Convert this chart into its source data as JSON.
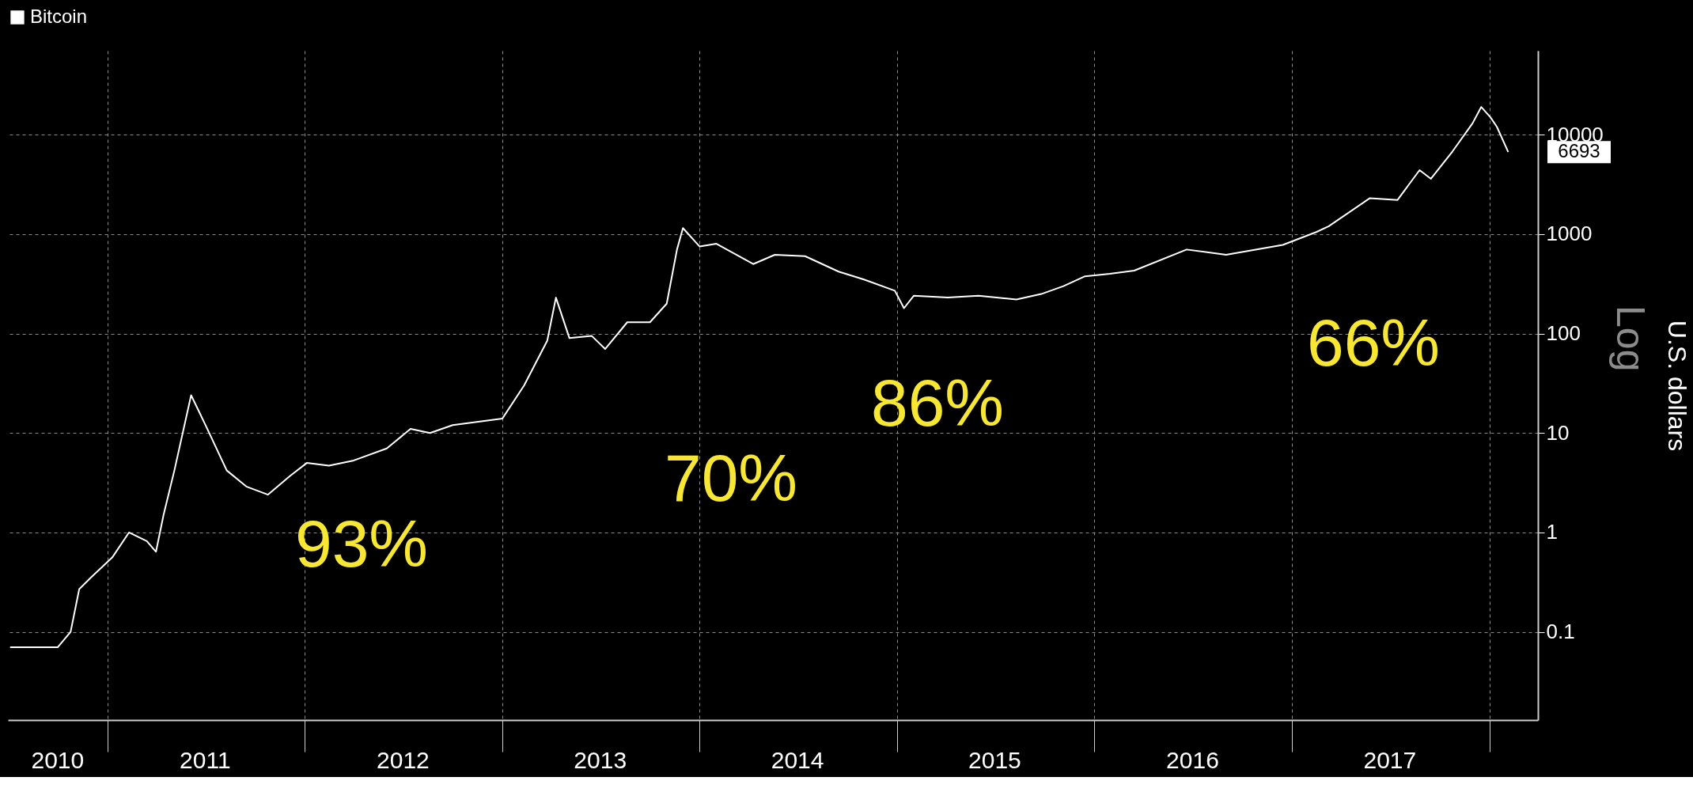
{
  "chart_data": {
    "type": "line",
    "ylabel": "U.S. dollars",
    "log": "y",
    "legend": "top left",
    "grid": true,
    "marker": "none",
    "line_style": "solid",
    "ylim": [
      0.013,
      70000
    ],
    "yticks": [
      0.1,
      1,
      10,
      100,
      1000,
      10000
    ],
    "xlim": [
      "2010-07-01",
      "2018-04-01"
    ],
    "xticks": [
      {
        "value": "2011-01-01",
        "label": null
      },
      {
        "value": "2012-01-01",
        "label": null
      },
      {
        "value": "2013-01-01",
        "label": null
      },
      {
        "value": "2014-01-01",
        "label": null
      },
      {
        "value": "2015-01-01",
        "label": null
      },
      {
        "value": "2016-01-01",
        "label": null
      },
      {
        "value": "2017-01-01",
        "label": null
      },
      {
        "value": "2018-01-01",
        "label": null
      },
      {
        "value": "2010-10-01",
        "label": "2010"
      },
      {
        "value": "2011-07-01",
        "label": "2011"
      },
      {
        "value": "2012-07-01",
        "label": "2012"
      },
      {
        "value": "2013-07-01",
        "label": "2013"
      },
      {
        "value": "2014-07-01",
        "label": "2014"
      },
      {
        "value": "2015-07-01",
        "label": "2015"
      },
      {
        "value": "2016-07-01",
        "label": "2016"
      },
      {
        "value": "2017-07-01",
        "label": "2017"
      }
    ],
    "series": [
      {
        "name": "Bitcoin",
        "color": "#ffffff",
        "x": [
          "2010-07-05",
          "2010-10-01",
          "2010-10-25",
          "2010-11-10",
          "2010-12-01",
          "2011-01-10",
          "2011-02-10",
          "2011-03-15",
          "2011-04-01",
          "2011-04-15",
          "2011-05-05",
          "2011-06-05",
          "2011-07-05",
          "2011-08-10",
          "2011-09-15",
          "2011-10-25",
          "2011-12-05",
          "2012-01-05",
          "2012-02-15",
          "2012-04-01",
          "2012-06-01",
          "2012-07-15",
          "2012-08-20",
          "2012-10-01",
          "2013-01-01",
          "2013-02-10",
          "2013-03-25",
          "2013-04-10",
          "2013-05-05",
          "2013-06-15",
          "2013-07-10",
          "2013-08-20",
          "2013-10-01",
          "2013-11-01",
          "2013-11-20",
          "2013-12-01",
          "2014-01-01",
          "2014-02-01",
          "2014-04-10",
          "2014-05-20",
          "2014-07-15",
          "2014-09-15",
          "2014-11-01",
          "2014-12-28",
          "2015-01-14",
          "2015-02-01",
          "2015-04-05",
          "2015-06-01",
          "2015-08-10",
          "2015-09-25",
          "2015-11-05",
          "2015-12-15",
          "2016-01-30",
          "2016-03-15",
          "2016-06-20",
          "2016-09-01",
          "2016-12-15",
          "2017-02-15",
          "2017-03-10",
          "2017-05-25",
          "2017-07-15",
          "2017-08-25",
          "2017-09-15",
          "2017-10-25",
          "2017-12-01",
          "2017-12-17",
          "2018-01-03",
          "2018-01-15",
          "2018-02-05"
        ],
        "values": [
          0.07,
          0.07,
          0.1,
          0.27,
          0.35,
          0.56,
          1,
          0.82,
          0.64,
          1.5,
          4.2,
          24,
          11,
          4.2,
          2.9,
          2.4,
          3.7,
          5,
          4.7,
          5.3,
          7,
          11,
          10,
          12,
          14,
          30,
          85,
          230,
          90,
          95,
          70,
          130,
          130,
          200,
          700,
          1150,
          750,
          800,
          500,
          620,
          600,
          420,
          350,
          270,
          180,
          240,
          230,
          240,
          220,
          250,
          300,
          377,
          400,
          430,
          700,
          620,
          780,
          1050,
          1200,
          2300,
          2200,
          4400,
          3600,
          6800,
          13000,
          19000,
          15000,
          12000,
          6693
        ]
      }
    ],
    "annotations": [
      "93%",
      "70%",
      "86%",
      "66%",
      "6693",
      "Log"
    ]
  }
}
